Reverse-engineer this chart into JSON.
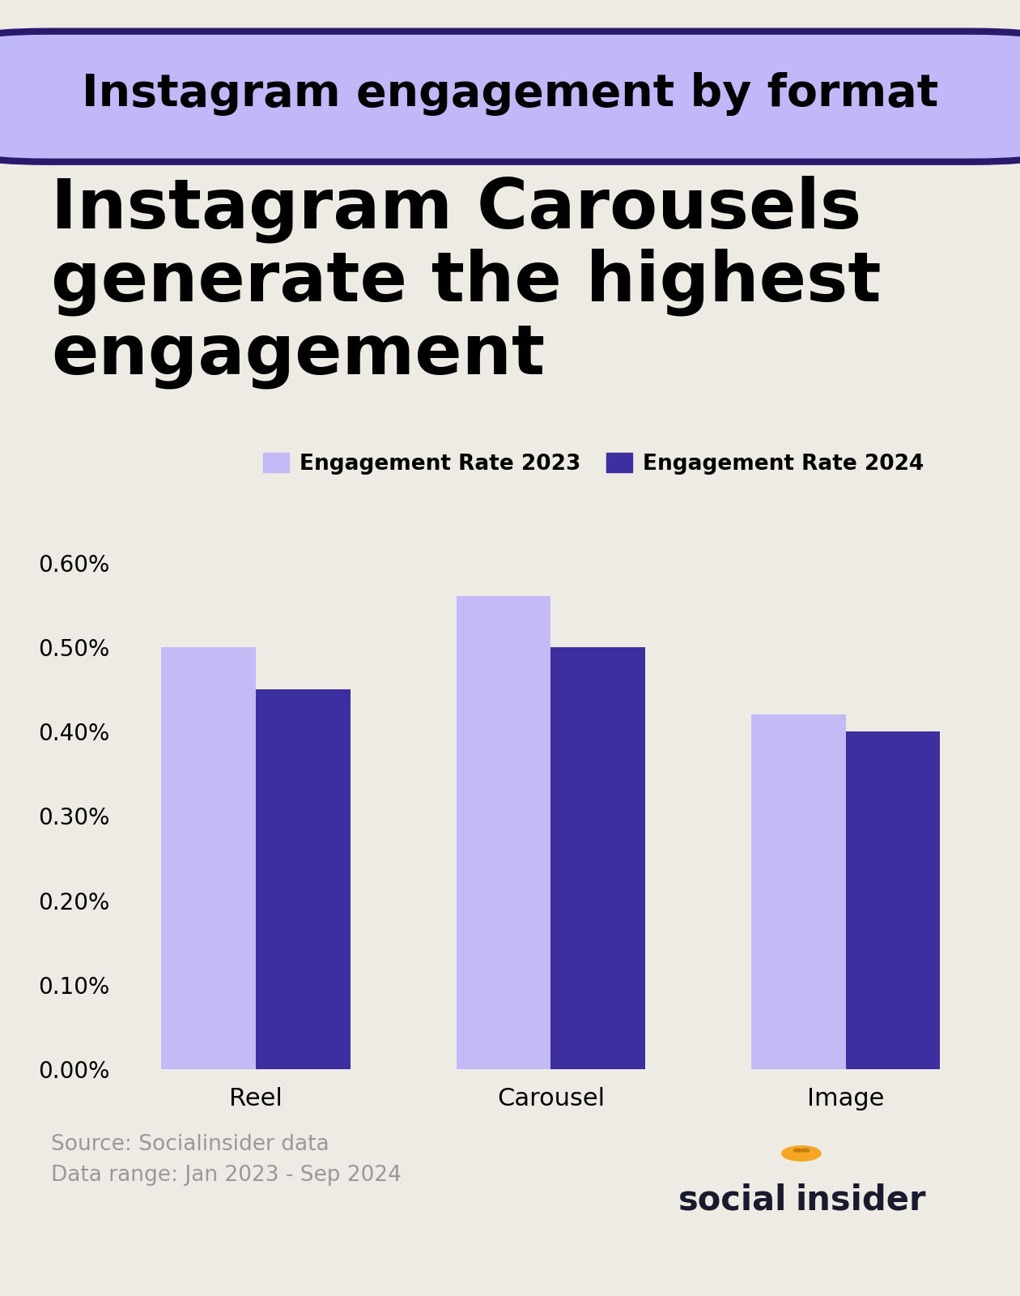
{
  "title_badge": "Instagram engagement by format",
  "subtitle": "Instagram Carousels\ngenerate the highest\nengagement",
  "categories": [
    "Reel",
    "Carousel",
    "Image"
  ],
  "values_2023": [
    0.005,
    0.0056,
    0.0042
  ],
  "values_2024": [
    0.0045,
    0.005,
    0.004
  ],
  "color_2023": "#c4baf5",
  "color_2024": "#3d2fa0",
  "background_color": "#eeebe5",
  "badge_bg_color": "#c0b8f8",
  "badge_border_color": "#2a1a6e",
  "ytick_vals": [
    0.0,
    0.001,
    0.002,
    0.003,
    0.004,
    0.005,
    0.006
  ],
  "ytick_labels": [
    "0.00%",
    "0.10%",
    "0.20%",
    "0.30%",
    "0.40%",
    "0.50%",
    "0.60%"
  ],
  "legend_2023": "Engagement Rate 2023",
  "legend_2024": "Engagement Rate 2024",
  "source_text": "Source: Socialinsider data\nData range: Jan 2023 - Sep 2024",
  "bar_width": 0.32,
  "ylim": [
    0,
    0.0066
  ]
}
